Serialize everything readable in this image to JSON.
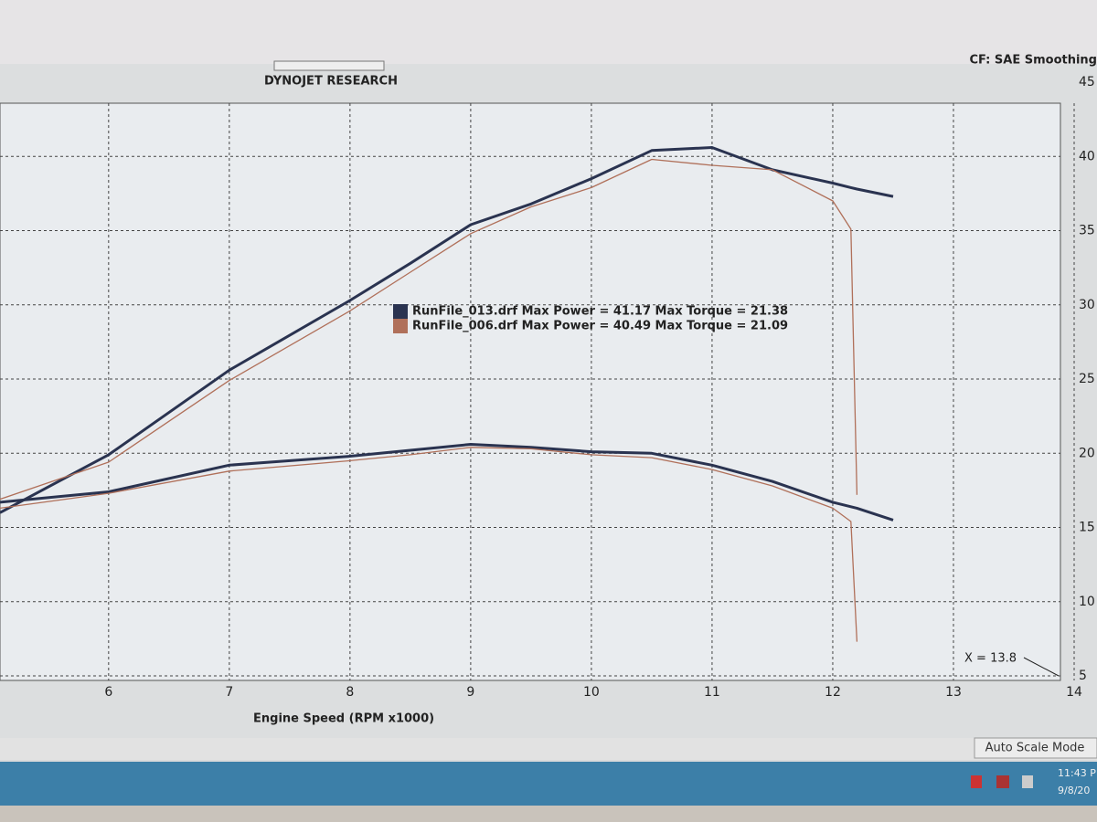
{
  "header": {
    "title": "DYNOJET RESEARCH",
    "settings": "CF: SAE  Smoothing"
  },
  "chart_data": {
    "type": "line",
    "xlabel": "Engine Speed (RPM x1000)",
    "x": [
      5.1,
      6,
      7,
      8,
      8.5,
      9,
      9.5,
      10,
      10.5,
      11,
      11.5,
      12,
      12.15,
      12.2,
      12.5
    ],
    "series": [
      {
        "name": "RunFile_013.drf Max Power = 41.17 Max Torque = 21.38",
        "color": "#2a3350",
        "power": [
          16.0,
          19.9,
          25.6,
          30.3,
          32.8,
          35.4,
          36.8,
          38.5,
          40.4,
          40.6,
          39.1,
          38.2,
          37.9,
          37.8,
          37.3
        ],
        "torque": [
          16.7,
          17.4,
          19.2,
          19.8,
          20.2,
          20.6,
          20.4,
          20.1,
          20.0,
          19.2,
          18.1,
          16.7,
          16.4,
          16.3,
          15.5
        ]
      },
      {
        "name": "RunFile_006.drf Max Power = 40.49 Max Torque = 21.09",
        "color": "#b0705a",
        "power": [
          16.9,
          19.4,
          24.9,
          29.6,
          32.2,
          34.8,
          36.6,
          37.9,
          39.8,
          39.4,
          39.1,
          37.0,
          35.1,
          17.2,
          null
        ],
        "torque": [
          16.3,
          17.3,
          18.8,
          19.5,
          19.9,
          20.4,
          20.3,
          19.9,
          19.7,
          18.9,
          17.8,
          16.3,
          15.4,
          7.3,
          null
        ]
      }
    ],
    "xlim": [
      5.1,
      14
    ],
    "xticks": [
      6,
      7,
      8,
      9,
      10,
      11,
      12,
      13,
      14
    ],
    "ylim": [
      5,
      45
    ],
    "yticks": [
      5,
      10,
      15,
      20,
      25,
      30,
      35,
      40,
      45
    ],
    "grid": true,
    "cursor": "X = 13.8"
  },
  "status": {
    "mode": "Auto Scale Mode"
  },
  "taskbar": {
    "time": "11:43 P",
    "date": "9/8/20"
  }
}
